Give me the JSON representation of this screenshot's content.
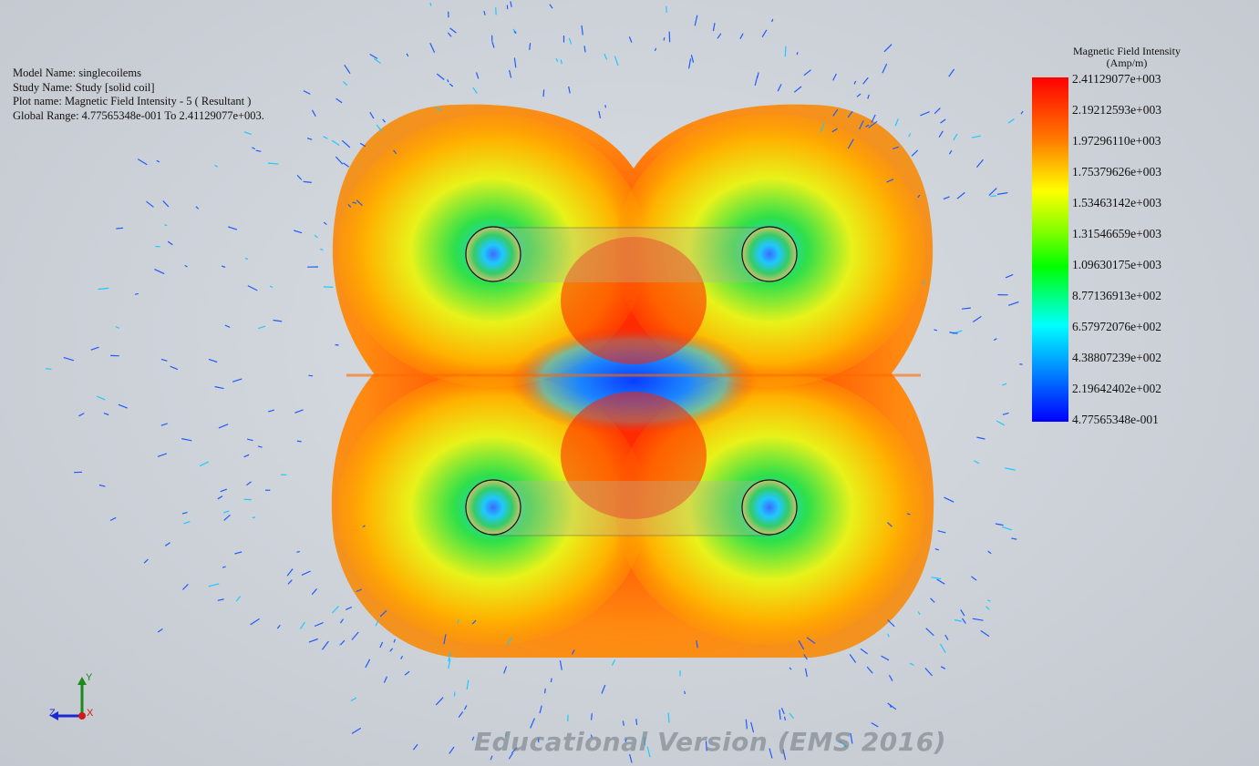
{
  "plot_info": {
    "model_name": "Model Name: singlecoilems",
    "study_name": "Study Name: Study [solid coil]",
    "plot_name": "Plot name: Magnetic Field Intensity - 5 ( Resultant )",
    "global_range": "Global Range: 4.77565348e-001 To 2.41129077e+003."
  },
  "legend": {
    "title_line1": "Magnetic Field Intensity",
    "title_line2": "(Amp/m)",
    "ticks": [
      "2.41129077e+003",
      "2.19212593e+003",
      "1.97296110e+003",
      "1.75379626e+003",
      "1.53463142e+003",
      "1.31546659e+003",
      "1.09630175e+003",
      "8.77136913e+002",
      "6.57972076e+002",
      "4.38807239e+002",
      "2.19642402e+002",
      "4.77565348e-001"
    ]
  },
  "triad": {
    "y_label": "Y",
    "z_label": "Z",
    "x_label": "X"
  },
  "watermark": "Educational Version (EMS 2016)"
}
